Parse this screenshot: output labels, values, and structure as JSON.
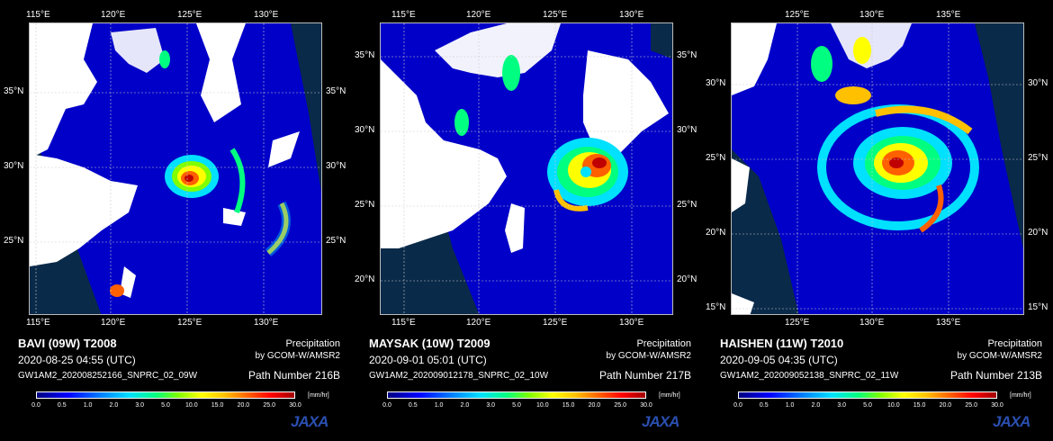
{
  "colorbar": {
    "ticks": [
      "0.0",
      "0.5",
      "1.0",
      "2.0",
      "3.0",
      "5.0",
      "10.0",
      "15.0",
      "20.0",
      "25.0",
      "30.0"
    ],
    "unit": "[mm/hr]"
  },
  "logo": "JAXA",
  "colors": {
    "ocean": "#0000c8",
    "land": "#ffffff",
    "offswath": "#0a2a4a"
  },
  "panels": [
    {
      "title": "BAVI (09W)  T2008",
      "product_label": "Precipitation",
      "sensor": "by GCOM-W/AMSR2",
      "datetime": "2020-08-25 04:55 (UTC)",
      "granule": "GW1AM2_202008252166_SNPRC_02_09W",
      "path": "Path Number 216B",
      "top_ticks": [
        "115°E",
        "120°E",
        "125°E",
        "130°E"
      ],
      "bottom_ticks": [
        "115°E",
        "120°E",
        "125°E",
        "130°E"
      ],
      "left_ticks": [
        "35°N",
        "30°N",
        "25°N"
      ],
      "right_ticks": [
        "35°N",
        "30°N",
        "25°N"
      ]
    },
    {
      "title": "MAYSAK (10W)  T2009",
      "product_label": "Precipitation",
      "sensor": "by GCOM-W/AMSR2",
      "datetime": "2020-09-01 05:01 (UTC)",
      "granule": "GW1AM2_202009012178_SNPRC_02_10W",
      "path": "Path Number 217B",
      "top_ticks": [
        "115°E",
        "120°E",
        "125°E",
        "130°E"
      ],
      "bottom_ticks": [
        "115°E",
        "120°E",
        "125°E",
        "130°E"
      ],
      "left_ticks": [
        "35°N",
        "30°N",
        "25°N",
        "20°N"
      ],
      "right_ticks": [
        "35°N",
        "30°N",
        "25°N",
        "20°N"
      ]
    },
    {
      "title": "HAISHEN (11W)  T2010",
      "product_label": "Precipitation",
      "sensor": "by GCOM-W/AMSR2",
      "datetime": "2020-09-05 04:35 (UTC)",
      "granule": "GW1AM2_202009052138_SNPRC_02_11W",
      "path": "Path Number 213B",
      "top_ticks": [
        "125°E",
        "130°E",
        "135°E"
      ],
      "bottom_ticks": [
        "125°E",
        "130°E",
        "135°E"
      ],
      "left_ticks": [
        "30°N",
        "25°N",
        "20°N",
        "15°N"
      ],
      "right_ticks": [
        "30°N",
        "25°N",
        "20°N",
        "15°N"
      ]
    }
  ]
}
